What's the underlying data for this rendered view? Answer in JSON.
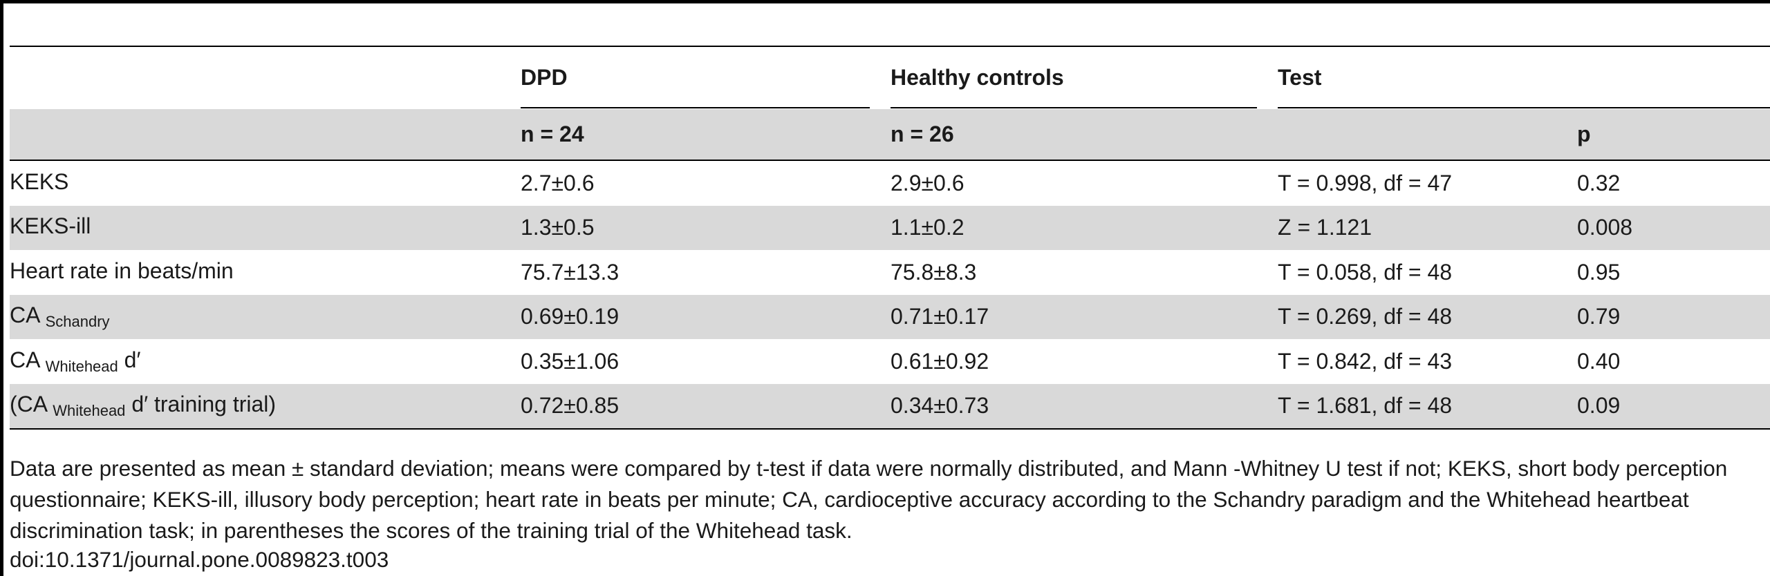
{
  "table": {
    "headers": {
      "group_dpd": "DPD",
      "group_controls": "Healthy controls",
      "group_test": "Test",
      "n_dpd": "n = 24",
      "n_controls": "n = 26",
      "p_label": "p"
    },
    "rows": [
      {
        "label": "KEKS",
        "label_sub": "",
        "label_tail": "",
        "dpd": "2.7±0.6",
        "controls": "2.9±0.6",
        "test": "T = 0.998, df  = 47",
        "p": "0.32"
      },
      {
        "label": "KEKS-ill",
        "label_sub": "",
        "label_tail": "",
        "dpd": "1.3±0.5",
        "controls": "1.1±0.2",
        "test": "Z = 1.121",
        "p": "0.008"
      },
      {
        "label": "Heart rate in beats/min",
        "label_sub": "",
        "label_tail": "",
        "dpd": "75.7±13.3",
        "controls": "75.8±8.3",
        "test": "T = 0.058, df = 48",
        "p": "0.95"
      },
      {
        "label": "CA ",
        "label_sub": "Schandry",
        "label_tail": "",
        "dpd": "0.69±0.19",
        "controls": "0.71±0.17",
        "test": "T = 0.269, df = 48",
        "p": "0.79"
      },
      {
        "label": "CA ",
        "label_sub": "Whitehead",
        "label_tail": " d′",
        "dpd": "0.35±1.06",
        "controls": "0.61±0.92",
        "test": "T = 0.842, df  = 43",
        "p": "0.40"
      },
      {
        "label": "(CA ",
        "label_sub": "Whitehead",
        "label_tail": " d′ training trial)",
        "dpd": "0.72±0.85",
        "controls": "0.34±0.73",
        "test": "T = 1.681, df = 48",
        "p": "0.09"
      }
    ]
  },
  "footnote": "Data are presented as mean ± standard deviation; means were compared by t-test if data were normally distributed, and Mann -Whitney U test if not; KEKS, short body perception questionnaire; KEKS-ill, illusory body perception; heart rate in beats per minute; CA, cardioceptive accuracy according to the Schandry paradigm and the Whitehead heartbeat discrimination task; in parentheses the scores of the training trial of the Whitehead task.",
  "doi": "doi:10.1371/journal.pone.0089823.t003"
}
